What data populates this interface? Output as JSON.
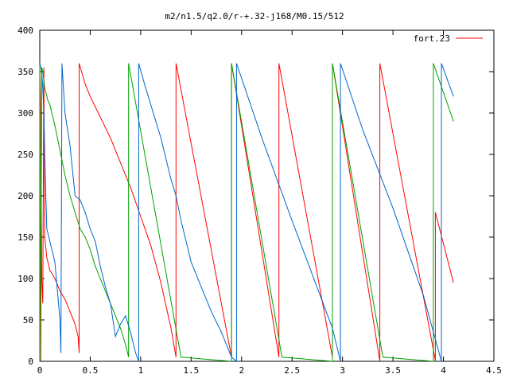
{
  "chart_data": {
    "type": "line",
    "title": "m2/n1.5/q2.0/r-+.32-j168/M0.15/512",
    "xlim": [
      0,
      4.5
    ],
    "ylim": [
      0,
      400
    ],
    "xticks": [
      "0",
      "0.5",
      "1",
      "1.5",
      "2",
      "2.5",
      "3",
      "3.5",
      "4",
      "4.5"
    ],
    "yticks": [
      "0",
      "50",
      "100",
      "150",
      "200",
      "250",
      "300",
      "350",
      "400"
    ],
    "grid": false,
    "legend": {
      "placement": "top-right",
      "label": "fort.23",
      "color": "#ff0000"
    },
    "series": [
      {
        "color": "#ff0000",
        "points": [
          [
            0.0,
            0
          ],
          [
            0.0,
            355
          ],
          [
            0.01,
            300
          ],
          [
            0.02,
            100
          ],
          [
            0.03,
            70
          ],
          [
            0.04,
            355
          ],
          [
            0.05,
            150
          ],
          [
            0.07,
            125
          ],
          [
            0.1,
            110
          ],
          [
            0.15,
            100
          ],
          [
            0.2,
            85
          ],
          [
            0.25,
            75
          ],
          [
            0.3,
            60
          ],
          [
            0.35,
            45
          ],
          [
            0.38,
            30
          ],
          [
            0.39,
            10
          ],
          [
            0.39,
            360
          ],
          [
            0.45,
            335
          ],
          [
            0.5,
            320
          ],
          [
            0.6,
            295
          ],
          [
            0.7,
            270
          ],
          [
            0.8,
            240
          ],
          [
            0.9,
            210
          ],
          [
            1.0,
            175
          ],
          [
            1.1,
            140
          ],
          [
            1.2,
            95
          ],
          [
            1.3,
            40
          ],
          [
            1.35,
            5
          ],
          [
            1.35,
            360
          ],
          [
            1.9,
            5
          ],
          [
            1.9,
            360
          ],
          [
            2.37,
            5
          ],
          [
            2.37,
            360
          ],
          [
            2.9,
            5
          ],
          [
            2.9,
            360
          ],
          [
            3.37,
            0
          ],
          [
            3.37,
            360
          ],
          [
            3.92,
            1
          ],
          [
            3.92,
            180
          ],
          [
            4.1,
            95
          ]
        ]
      },
      {
        "color": "#00a000",
        "points": [
          [
            0.0,
            360
          ],
          [
            0.01,
            0
          ],
          [
            0.02,
            355
          ],
          [
            0.03,
            350
          ],
          [
            0.05,
            330
          ],
          [
            0.08,
            315
          ],
          [
            0.1,
            310
          ],
          [
            0.15,
            285
          ],
          [
            0.2,
            255
          ],
          [
            0.25,
            225
          ],
          [
            0.3,
            200
          ],
          [
            0.35,
            180
          ],
          [
            0.4,
            160
          ],
          [
            0.45,
            150
          ],
          [
            0.5,
            135
          ],
          [
            0.55,
            115
          ],
          [
            0.6,
            100
          ],
          [
            0.65,
            85
          ],
          [
            0.7,
            70
          ],
          [
            0.75,
            55
          ],
          [
            0.8,
            40
          ],
          [
            0.85,
            20
          ],
          [
            0.88,
            5
          ],
          [
            0.88,
            360
          ],
          [
            1.4,
            5
          ],
          [
            1.9,
            0
          ],
          [
            1.9,
            360
          ],
          [
            2.4,
            5
          ],
          [
            2.9,
            0
          ],
          [
            2.9,
            360
          ],
          [
            3.4,
            5
          ],
          [
            3.9,
            0
          ],
          [
            3.9,
            360
          ],
          [
            4.1,
            290
          ]
        ]
      },
      {
        "color": "#0066cc",
        "points": [
          [
            0.0,
            360
          ],
          [
            0.02,
            350
          ],
          [
            0.03,
            330
          ],
          [
            0.04,
            300
          ],
          [
            0.05,
            250
          ],
          [
            0.06,
            200
          ],
          [
            0.07,
            160
          ],
          [
            0.1,
            145
          ],
          [
            0.15,
            120
          ],
          [
            0.2,
            50
          ],
          [
            0.21,
            10
          ],
          [
            0.22,
            360
          ],
          [
            0.25,
            300
          ],
          [
            0.3,
            260
          ],
          [
            0.35,
            200
          ],
          [
            0.4,
            195
          ],
          [
            0.45,
            180
          ],
          [
            0.5,
            160
          ],
          [
            0.55,
            145
          ],
          [
            0.6,
            115
          ],
          [
            0.65,
            90
          ],
          [
            0.7,
            70
          ],
          [
            0.75,
            30
          ],
          [
            0.8,
            45
          ],
          [
            0.85,
            55
          ],
          [
            0.9,
            35
          ],
          [
            0.95,
            10
          ],
          [
            0.98,
            0
          ],
          [
            0.98,
            360
          ],
          [
            1.05,
            330
          ],
          [
            1.1,
            310
          ],
          [
            1.15,
            290
          ],
          [
            1.2,
            270
          ],
          [
            1.25,
            245
          ],
          [
            1.3,
            220
          ],
          [
            1.35,
            200
          ],
          [
            1.4,
            170
          ],
          [
            1.45,
            145
          ],
          [
            1.5,
            120
          ],
          [
            1.6,
            90
          ],
          [
            1.7,
            60
          ],
          [
            1.8,
            35
          ],
          [
            1.9,
            5
          ],
          [
            1.95,
            0
          ],
          [
            1.95,
            360
          ],
          [
            2.2,
            270
          ],
          [
            2.5,
            170
          ],
          [
            2.9,
            40
          ],
          [
            2.98,
            0
          ],
          [
            2.98,
            360
          ],
          [
            3.2,
            280
          ],
          [
            3.5,
            185
          ],
          [
            3.8,
            80
          ],
          [
            3.98,
            0
          ],
          [
            3.98,
            360
          ],
          [
            4.1,
            320
          ]
        ]
      }
    ]
  }
}
